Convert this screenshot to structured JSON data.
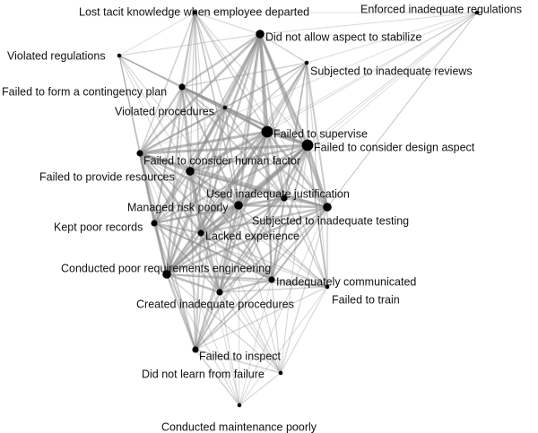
{
  "colors": {
    "node": "#000000",
    "edge": "#8c8c8c",
    "label": "#111111",
    "background": "#ffffff"
  },
  "nodes": [
    {
      "id": "lost-tacit",
      "label": "Lost tacit knowledge when employee departed",
      "size": "small"
    },
    {
      "id": "enforced-inadequate",
      "label": "Enforced inadequate regulations",
      "size": "small"
    },
    {
      "id": "not-stabilize",
      "label": "Did not allow aspect to stabilize",
      "size": "large"
    },
    {
      "id": "violated-regs",
      "label": "Violated regulations",
      "size": "small"
    },
    {
      "id": "inadequate-reviews",
      "label": "Subjected to inadequate reviews",
      "size": "small"
    },
    {
      "id": "contingency",
      "label": "Failed to form a contingency plan",
      "size": "medium"
    },
    {
      "id": "violated-procs",
      "label": "Violated procedures",
      "size": "small"
    },
    {
      "id": "supervise",
      "label": "Failed to supervise",
      "size": "xlarge"
    },
    {
      "id": "design-aspect",
      "label": "Failed to consider design aspect",
      "size": "xlarge"
    },
    {
      "id": "human-factor",
      "label": "Failed to consider human factor",
      "size": "medium"
    },
    {
      "id": "resources",
      "label": "Failed to provide resources",
      "size": "large"
    },
    {
      "id": "justification",
      "label": "Used inadequate justification",
      "size": "medium"
    },
    {
      "id": "risk-poorly",
      "label": "Managed risk poorly",
      "size": "large"
    },
    {
      "id": "inadequate-testing",
      "label": "Subjected to inadequate testing",
      "size": "large"
    },
    {
      "id": "poor-records",
      "label": "Kept poor records",
      "size": "medium"
    },
    {
      "id": "experience",
      "label": "Lacked experience",
      "size": "medium"
    },
    {
      "id": "requirements",
      "label": "Conducted poor requirements engineering",
      "size": "large"
    },
    {
      "id": "communicated",
      "label": "Inadequately communicated",
      "size": "medium"
    },
    {
      "id": "procedures",
      "label": "Created inadequate procedures",
      "size": "medium"
    },
    {
      "id": "train",
      "label": "Failed to train",
      "size": "small"
    },
    {
      "id": "inspect",
      "label": "Failed to inspect",
      "size": "medium"
    },
    {
      "id": "learn-failure",
      "label": "Did not learn from failure",
      "size": "small"
    },
    {
      "id": "maintenance",
      "label": "Conducted maintenance poorly",
      "size": "small"
    }
  ]
}
